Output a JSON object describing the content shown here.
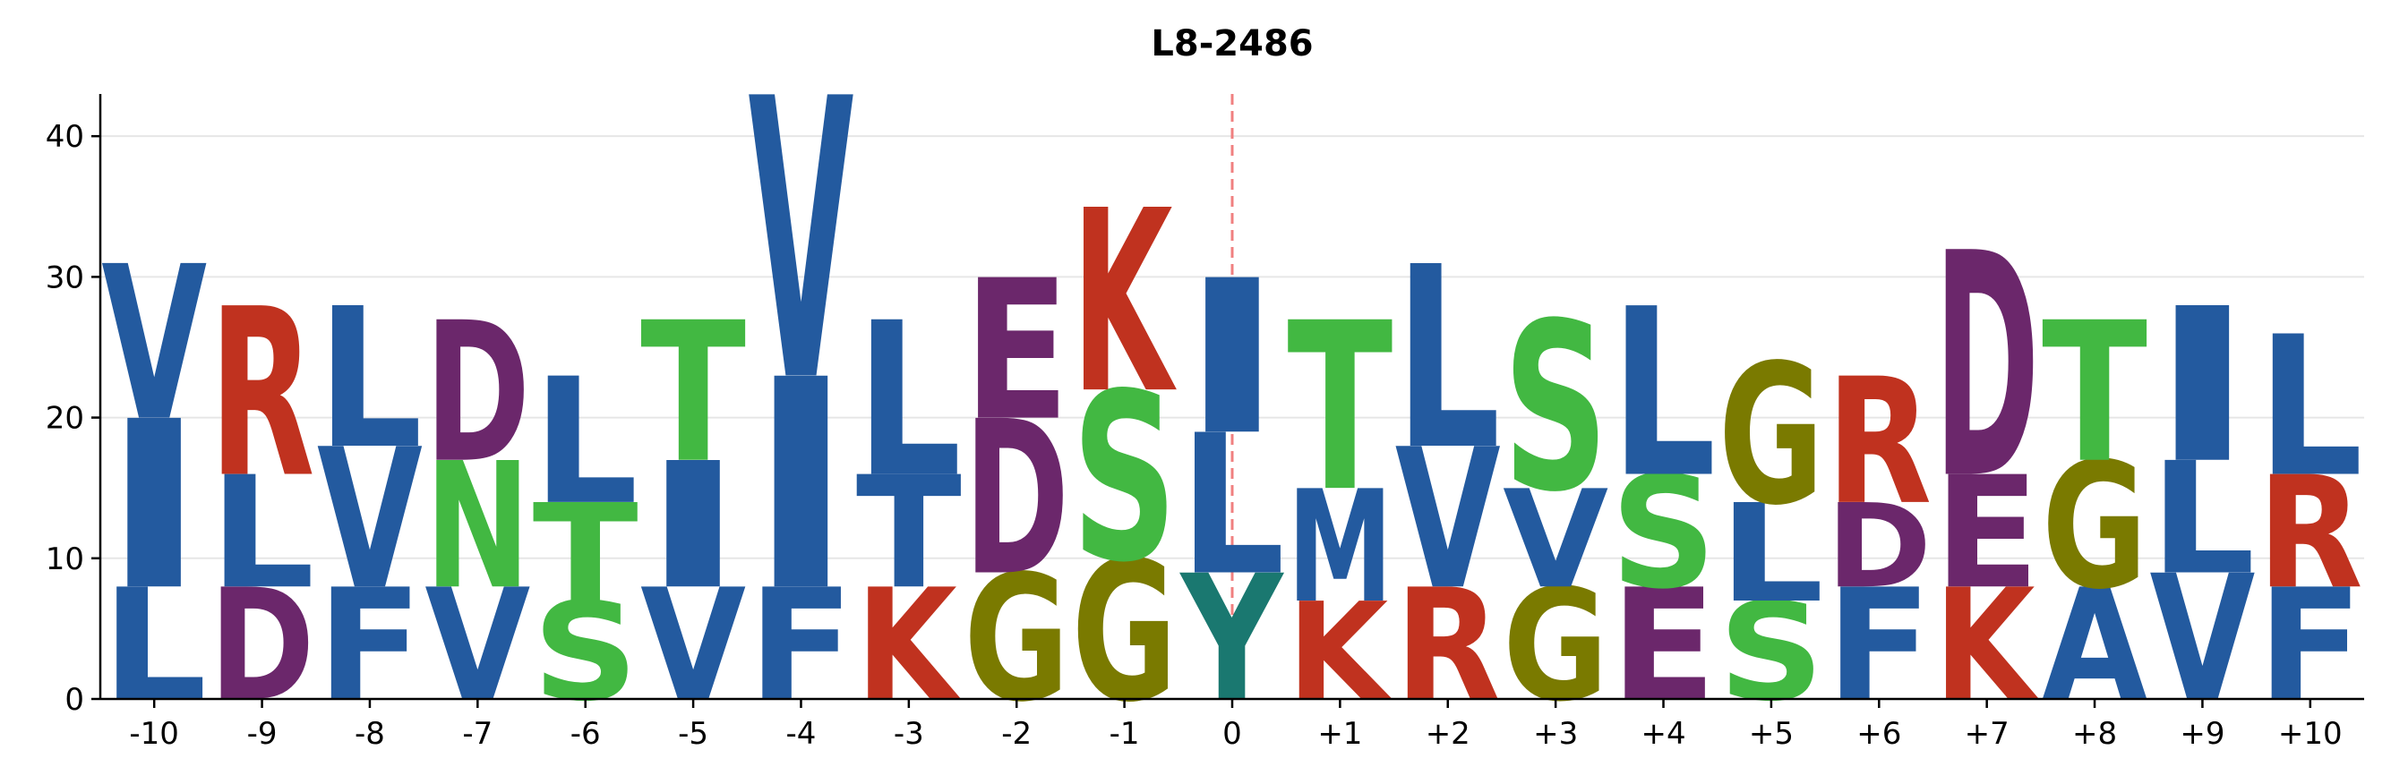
{
  "chart_data": {
    "type": "sequence-logo",
    "title": "L8-2486",
    "xlabel": "",
    "ylabel": "",
    "ylim": [
      0,
      43
    ],
    "yticks": [
      0,
      10,
      20,
      30,
      40
    ],
    "grid": "horizontal",
    "reference_position": "0",
    "reference_line_color": "#f08080",
    "positions": [
      "-10",
      "-9",
      "-8",
      "-7",
      "-6",
      "-5",
      "-4",
      "-3",
      "-2",
      "-1",
      "0",
      "+1",
      "+2",
      "+3",
      "+4",
      "+5",
      "+6",
      "+7",
      "+8",
      "+9",
      "+10"
    ],
    "colors": {
      "blue": "#235a9f",
      "red": "#c0321f",
      "purple": "#6b276b",
      "green": "#42b842",
      "olive": "#7a7a00",
      "teal": "#1a7870"
    },
    "stacks": [
      [
        {
          "letter": "L",
          "value": 8,
          "color": "blue"
        },
        {
          "letter": "I",
          "value": 12,
          "color": "blue"
        },
        {
          "letter": "V",
          "value": 11,
          "color": "blue"
        }
      ],
      [
        {
          "letter": "D",
          "value": 8,
          "color": "purple"
        },
        {
          "letter": "L",
          "value": 8,
          "color": "blue"
        },
        {
          "letter": "R",
          "value": 12,
          "color": "red"
        }
      ],
      [
        {
          "letter": "F",
          "value": 8,
          "color": "blue"
        },
        {
          "letter": "V",
          "value": 10,
          "color": "blue"
        },
        {
          "letter": "L",
          "value": 10,
          "color": "blue"
        }
      ],
      [
        {
          "letter": "V",
          "value": 8,
          "color": "blue"
        },
        {
          "letter": "N",
          "value": 9,
          "color": "green"
        },
        {
          "letter": "D",
          "value": 10,
          "color": "purple"
        }
      ],
      [
        {
          "letter": "S",
          "value": 7,
          "color": "green"
        },
        {
          "letter": "T",
          "value": 7,
          "color": "green"
        },
        {
          "letter": "L",
          "value": 9,
          "color": "blue"
        }
      ],
      [
        {
          "letter": "V",
          "value": 8,
          "color": "blue"
        },
        {
          "letter": "I",
          "value": 9,
          "color": "blue"
        },
        {
          "letter": "T",
          "value": 10,
          "color": "green"
        }
      ],
      [
        {
          "letter": "F",
          "value": 8,
          "color": "blue"
        },
        {
          "letter": "I",
          "value": 15,
          "color": "blue"
        },
        {
          "letter": "V",
          "value": 20,
          "color": "blue"
        }
      ],
      [
        {
          "letter": "K",
          "value": 8,
          "color": "red"
        },
        {
          "letter": "T",
          "value": 8,
          "color": "blue"
        },
        {
          "letter": "L",
          "value": 11,
          "color": "blue"
        }
      ],
      [
        {
          "letter": "G",
          "value": 9,
          "color": "olive"
        },
        {
          "letter": "D",
          "value": 11,
          "color": "purple"
        },
        {
          "letter": "E",
          "value": 10,
          "color": "purple"
        }
      ],
      [
        {
          "letter": "G",
          "value": 10,
          "color": "olive"
        },
        {
          "letter": "S",
          "value": 12,
          "color": "green"
        },
        {
          "letter": "K",
          "value": 13,
          "color": "red"
        }
      ],
      [
        {
          "letter": "Y",
          "value": 9,
          "color": "teal"
        },
        {
          "letter": "L",
          "value": 10,
          "color": "blue"
        },
        {
          "letter": "I",
          "value": 11,
          "color": "blue"
        }
      ],
      [
        {
          "letter": "K",
          "value": 7,
          "color": "red"
        },
        {
          "letter": "M",
          "value": 8,
          "color": "blue"
        },
        {
          "letter": "T",
          "value": 12,
          "color": "green"
        }
      ],
      [
        {
          "letter": "R",
          "value": 8,
          "color": "red"
        },
        {
          "letter": "V",
          "value": 10,
          "color": "blue"
        },
        {
          "letter": "L",
          "value": 13,
          "color": "blue"
        }
      ],
      [
        {
          "letter": "G",
          "value": 8,
          "color": "olive"
        },
        {
          "letter": "V",
          "value": 7,
          "color": "blue"
        },
        {
          "letter": "S",
          "value": 12,
          "color": "green"
        }
      ],
      [
        {
          "letter": "E",
          "value": 8,
          "color": "purple"
        },
        {
          "letter": "S",
          "value": 8,
          "color": "green"
        },
        {
          "letter": "L",
          "value": 12,
          "color": "blue"
        }
      ],
      [
        {
          "letter": "S",
          "value": 7,
          "color": "green"
        },
        {
          "letter": "L",
          "value": 7,
          "color": "blue"
        },
        {
          "letter": "G",
          "value": 10,
          "color": "olive"
        }
      ],
      [
        {
          "letter": "F",
          "value": 8,
          "color": "blue"
        },
        {
          "letter": "D",
          "value": 6,
          "color": "purple"
        },
        {
          "letter": "R",
          "value": 9,
          "color": "red"
        }
      ],
      [
        {
          "letter": "K",
          "value": 8,
          "color": "red"
        },
        {
          "letter": "E",
          "value": 8,
          "color": "purple"
        },
        {
          "letter": "D",
          "value": 16,
          "color": "purple"
        }
      ],
      [
        {
          "letter": "A",
          "value": 8,
          "color": "blue"
        },
        {
          "letter": "G",
          "value": 9,
          "color": "olive"
        },
        {
          "letter": "T",
          "value": 10,
          "color": "green"
        }
      ],
      [
        {
          "letter": "V",
          "value": 9,
          "color": "blue"
        },
        {
          "letter": "L",
          "value": 8,
          "color": "blue"
        },
        {
          "letter": "I",
          "value": 11,
          "color": "blue"
        }
      ],
      [
        {
          "letter": "F",
          "value": 8,
          "color": "blue"
        },
        {
          "letter": "R",
          "value": 8,
          "color": "red"
        },
        {
          "letter": "L",
          "value": 10,
          "color": "blue"
        }
      ]
    ]
  }
}
